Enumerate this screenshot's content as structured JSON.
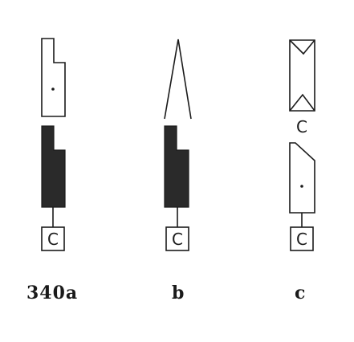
{
  "figure": {
    "captions": {
      "a": "340a",
      "b": "b",
      "c": "c"
    },
    "box_letter": "C"
  }
}
